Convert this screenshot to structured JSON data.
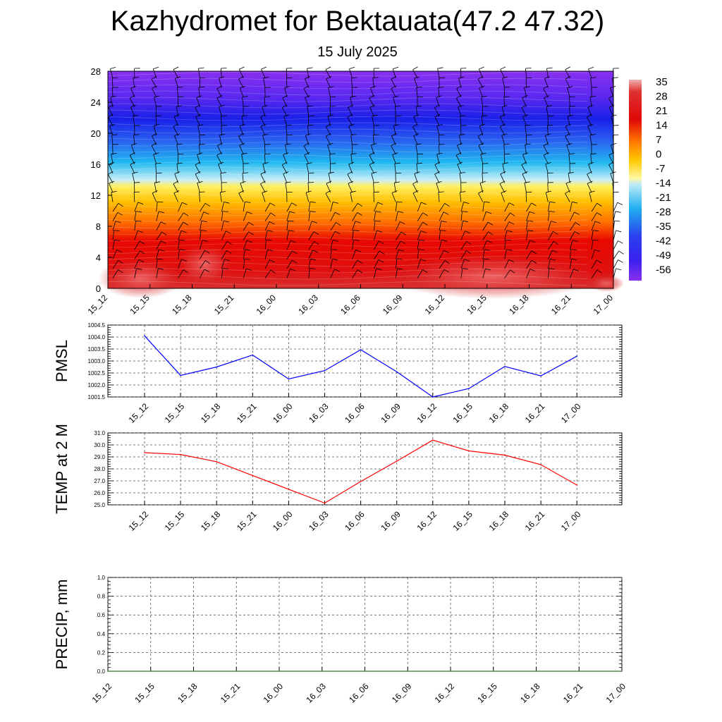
{
  "header": {
    "title": "Kazhydromet for Bektauata(47.2 47.32)",
    "subtitle": "15 July 2025"
  },
  "chart_data": [
    {
      "type": "heatmap",
      "ylim": [
        0,
        28
      ],
      "y_ticks": [
        "0",
        "4",
        "8",
        "12",
        "16",
        "20",
        "24",
        "28"
      ],
      "x_categories": [
        "15_12",
        "15_15",
        "15_18",
        "15_21",
        "16_00",
        "16_03",
        "16_06",
        "16_09",
        "16_12",
        "16_15",
        "16_18",
        "16_21",
        "17_00"
      ],
      "colorbar_labels": [
        "35",
        "28",
        "21",
        "14",
        "7",
        "0",
        "-7",
        "-14",
        "-21",
        "-28",
        "-35",
        "-42",
        "-49",
        "-56"
      ],
      "colors": {
        "hot": "#d42a2a",
        "red": "#e00808",
        "orange": "#ff8a00",
        "yellow": "#ffe24a",
        "cyan": "#1fb8f0",
        "blue": "#1e2cf0",
        "violet": "#8a2ff0"
      },
      "barb_color": "#000000"
    },
    {
      "type": "line",
      "ylabel": "PMSL",
      "ylim": [
        1001.5,
        1004.5
      ],
      "y_ticks": [
        "1001.5",
        "1002.0",
        "1002.5",
        "1003.0",
        "1003.5",
        "1004.0",
        "1004.5"
      ],
      "x_categories": [
        "15_12",
        "15_15",
        "15_18",
        "15_21",
        "16_00",
        "16_03",
        "16_06",
        "16_09",
        "16_12",
        "16_15",
        "16_18",
        "16_21",
        "17_00"
      ],
      "values": [
        1004.05,
        1002.4,
        1002.75,
        1003.25,
        1002.25,
        1002.6,
        1003.47,
        1002.55,
        1001.5,
        1001.85,
        1002.77,
        1002.38,
        1003.2
      ],
      "color": "#0000ff"
    },
    {
      "type": "line",
      "ylabel": "TEMP at 2 M",
      "ylim": [
        25.0,
        31.0
      ],
      "y_ticks": [
        "25.0",
        "26.0",
        "27.0",
        "28.0",
        "29.0",
        "30.0",
        "31.0"
      ],
      "x_categories": [
        "15_12",
        "15_15",
        "15_18",
        "15_21",
        "16_00",
        "16_03",
        "16_06",
        "16_09",
        "16_12",
        "16_15",
        "16_18",
        "16_21",
        "17_00"
      ],
      "values": [
        29.35,
        29.2,
        28.6,
        27.45,
        26.3,
        25.15,
        26.95,
        28.65,
        30.4,
        29.5,
        29.15,
        28.35,
        26.65
      ],
      "color": "#ff0000"
    },
    {
      "type": "line",
      "ylabel": "PRECIP, mm",
      "ylim": [
        0.0,
        1.0
      ],
      "y_ticks": [
        "0.0",
        "0.2",
        "0.4",
        "0.6",
        "0.8",
        "1.0"
      ],
      "x_categories": [
        "15_12",
        "15_15",
        "15_18",
        "15_21",
        "16_00",
        "16_03",
        "16_06",
        "16_09",
        "16_12",
        "16_15",
        "16_18",
        "16_21",
        "17_00"
      ],
      "values": [
        0,
        0,
        0,
        0,
        0,
        0,
        0,
        0,
        0,
        0,
        0,
        0,
        0
      ],
      "color": "#2a7a2a"
    }
  ]
}
